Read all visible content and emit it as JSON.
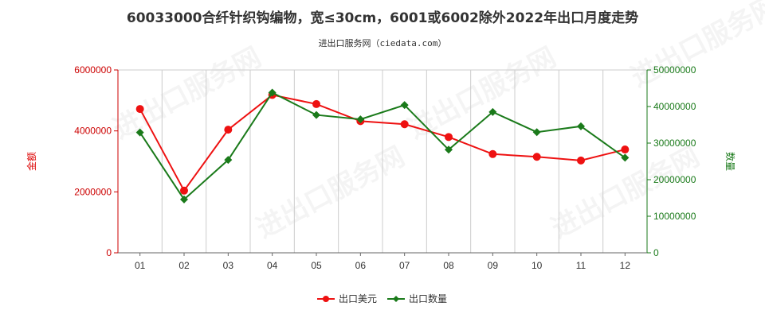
{
  "chart_data": {
    "type": "line",
    "title": "60033000合纤针织钩编物，宽≤30cm，6001或6002除外2022年出口月度走势",
    "subtitle": "进出口服务网（ciedata.com）",
    "watermark": "进出口服务网",
    "categories": [
      "01",
      "02",
      "03",
      "04",
      "05",
      "06",
      "07",
      "08",
      "09",
      "10",
      "11",
      "12"
    ],
    "left_axis": {
      "label": "金额",
      "range": [
        0,
        6000000
      ],
      "ticks": [
        "0",
        "2000000",
        "4000000",
        "6000000"
      ],
      "color": "#dd0000"
    },
    "right_axis": {
      "label": "数量",
      "range": [
        0,
        50000000
      ],
      "ticks": [
        "0",
        "10000000",
        "20000000",
        "30000000",
        "40000000",
        "50000000"
      ],
      "color": "#1a7a1a"
    },
    "series": [
      {
        "name": "出口美元",
        "axis": "left",
        "color": "#ee1111",
        "marker": "circle",
        "values": [
          4720000,
          2040000,
          4040000,
          5180000,
          4880000,
          4320000,
          4220000,
          3800000,
          3240000,
          3150000,
          3030000,
          3390000
        ]
      },
      {
        "name": "出口数量",
        "axis": "right",
        "color": "#1a7a1a",
        "marker": "diamond",
        "values": [
          32900000,
          14600000,
          25400000,
          43800000,
          37700000,
          36500000,
          40400000,
          28200000,
          38500000,
          33000000,
          34600000,
          26000000
        ]
      }
    ],
    "grid": "vertical",
    "legend_position": "bottom-center"
  }
}
